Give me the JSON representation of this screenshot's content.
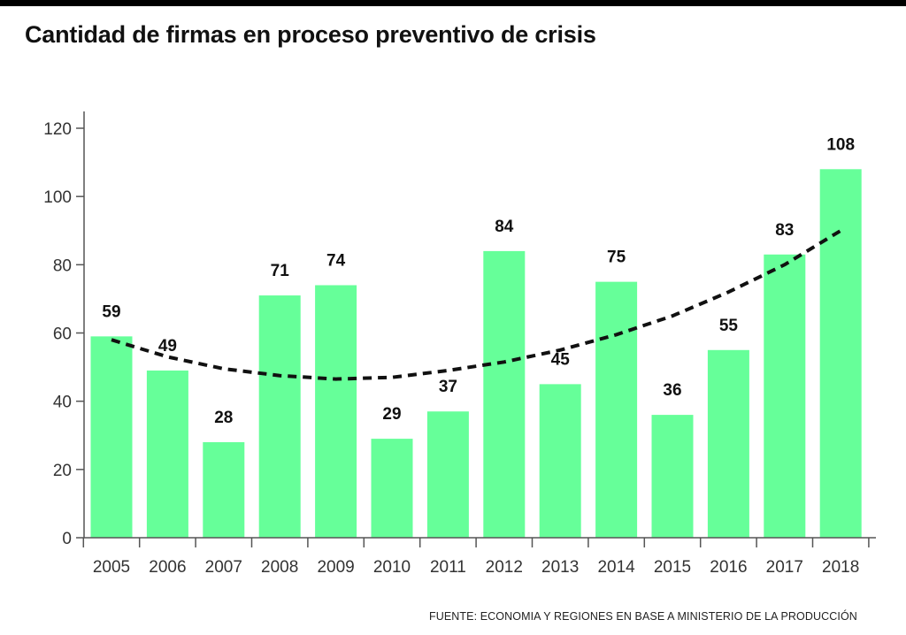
{
  "title": "Cantidad de firmas en proceso preventivo de crisis",
  "source": "FUENTE:  ECONOMIA Y REGIONES EN BASE A MINISTERIO DE LA PRODUCCIÓN",
  "colors": {
    "bar": "#66ff99",
    "trend": "#111111",
    "axis": "#555555"
  },
  "chart_data": {
    "type": "bar",
    "title": "Cantidad de firmas en proceso preventivo de crisis",
    "categories": [
      "2005",
      "2006",
      "2007",
      "2008",
      "2009",
      "2010",
      "2011",
      "2012",
      "2013",
      "2014",
      "2015",
      "2016",
      "2017",
      "2018"
    ],
    "values": [
      59,
      49,
      28,
      71,
      74,
      29,
      37,
      84,
      45,
      75,
      36,
      55,
      83,
      108
    ],
    "data_labels": [
      "59",
      "49",
      "28",
      "71",
      "74",
      "29",
      "37",
      "84",
      "45",
      "75",
      "36",
      "55",
      "83",
      "108"
    ],
    "ylim": [
      0,
      120
    ],
    "yticks": [
      0,
      20,
      40,
      60,
      80,
      100,
      120
    ],
    "ytick_labels": [
      "0",
      "20",
      "40",
      "60",
      "80",
      "100",
      "120"
    ],
    "xlabel": "",
    "ylabel": "",
    "grid": false,
    "legend": "none",
    "trendline": {
      "style": "dashed",
      "points": [
        {
          "x": "2005",
          "y": 58
        },
        {
          "x": "2006",
          "y": 53
        },
        {
          "x": "2007",
          "y": 49.5
        },
        {
          "x": "2008",
          "y": 47.5
        },
        {
          "x": "2009",
          "y": 46.5
        },
        {
          "x": "2010",
          "y": 47
        },
        {
          "x": "2011",
          "y": 49
        },
        {
          "x": "2012",
          "y": 51.5
        },
        {
          "x": "2013",
          "y": 55
        },
        {
          "x": "2014",
          "y": 59.5
        },
        {
          "x": "2015",
          "y": 65
        },
        {
          "x": "2016",
          "y": 72
        },
        {
          "x": "2017",
          "y": 80
        },
        {
          "x": "2018",
          "y": 90
        }
      ]
    }
  }
}
